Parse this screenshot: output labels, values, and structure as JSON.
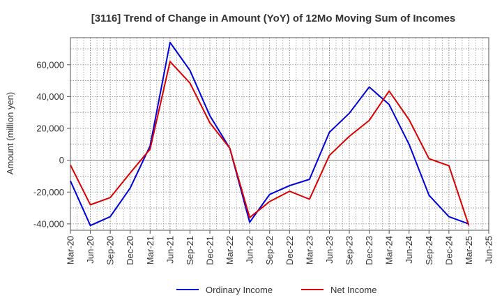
{
  "chart_data": {
    "type": "line",
    "title": "[3116]  Trend of Change in Amount (YoY) of 12Mo Moving Sum of Incomes",
    "xlabel": "",
    "ylabel": "Amount (million yen)",
    "categories": [
      "Mar-20",
      "Jun-20",
      "Sep-20",
      "Dec-20",
      "Mar-21",
      "Jun-21",
      "Sep-21",
      "Dec-21",
      "Mar-22",
      "Jun-22",
      "Sep-22",
      "Dec-22",
      "Mar-23",
      "Jun-23",
      "Sep-23",
      "Dec-23",
      "Mar-24",
      "Jun-24",
      "Sep-24",
      "Dec-24",
      "Mar-25",
      "Jun-25"
    ],
    "ylim": [
      -44000,
      77000
    ],
    "yticks": [
      -40000,
      -20000,
      0,
      20000,
      40000,
      60000
    ],
    "ytick_labels": [
      "-40,000",
      "-20,000",
      "0",
      "20,000",
      "40,000",
      "60,000"
    ],
    "grid": true,
    "legend_position": "bottom-center",
    "series": [
      {
        "name": "Ordinary Income",
        "color": "#0000dd",
        "values": [
          -13000,
          -41000,
          -35500,
          -17500,
          9000,
          74000,
          56500,
          28000,
          7500,
          -39000,
          -21500,
          -16000,
          -12000,
          17500,
          29500,
          46000,
          35000,
          10000,
          -22000,
          -35500,
          -40000,
          null
        ]
      },
      {
        "name": "Net Income",
        "color": "#dd0000",
        "values": [
          -3000,
          -28000,
          -23500,
          -8000,
          7000,
          62000,
          48500,
          23500,
          7500,
          -36000,
          -26000,
          -19500,
          -24500,
          3000,
          15000,
          25000,
          43500,
          25500,
          1000,
          -3500,
          -41000,
          null
        ]
      }
    ]
  }
}
